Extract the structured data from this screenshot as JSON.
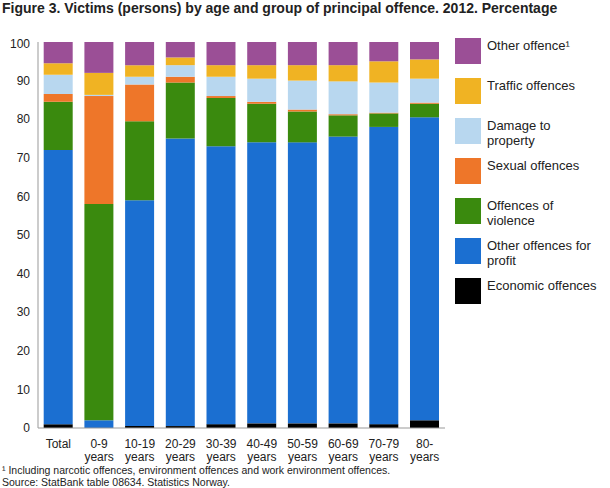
{
  "chart_data": {
    "type": "bar",
    "title": "Figure 3. Victims (persons) by age and group of principal offence. 2012. Percentage",
    "annotations": [
      "¹ Including narcotic offences, environment offences and work environment offences.",
      "Source: StatBank table 08634. Statistics Norway."
    ],
    "categories": [
      "Total",
      "0-9 years",
      "10-19 years",
      "20-29 years",
      "30-39 years",
      "40-49 years",
      "50-59 years",
      "60-69 years",
      "70-79 years",
      "80- years"
    ],
    "stacked": true,
    "grid": false,
    "legend": "right",
    "ylim": [
      0,
      100
    ],
    "yticks": [
      0,
      10,
      20,
      30,
      40,
      50,
      60,
      70,
      80,
      90,
      100
    ],
    "series": [
      {
        "name": "Economic offences",
        "color": "#000000",
        "values": [
          1,
          0,
          0.5,
          0.5,
          1,
          1.2,
          1.2,
          1.2,
          1,
          2
        ]
      },
      {
        "name": "Other offences for profit",
        "color": "#1b6fd1",
        "values": [
          71,
          2,
          58.5,
          74.5,
          72,
          72.8,
          72.8,
          74.3,
          77,
          78.5
        ]
      },
      {
        "name": "Offences of violence",
        "color": "#3a8a0e",
        "values": [
          12.5,
          56,
          20.5,
          14.5,
          12.5,
          10,
          8,
          5.5,
          3.5,
          3.5
        ]
      },
      {
        "name": "Sexual offences",
        "color": "#ee7629",
        "values": [
          2,
          28,
          9.5,
          1.5,
          0.5,
          0.5,
          0.5,
          0.3,
          0.2,
          0.3
        ]
      },
      {
        "name": "Damage to property",
        "color": "#b8d7ef",
        "values": [
          5,
          0.3,
          2,
          3,
          5,
          6,
          7.5,
          8.5,
          7.8,
          6.2
        ]
      },
      {
        "name": "Traffic offences",
        "color": "#f0b323",
        "values": [
          3,
          5.7,
          3,
          2,
          3,
          3.5,
          4,
          4.2,
          5.5,
          5
        ]
      },
      {
        "name": "Other offence¹",
        "color": "#9b4f96",
        "values": [
          5.5,
          8,
          6,
          4,
          6,
          6,
          6,
          6,
          5,
          4.5
        ]
      }
    ]
  }
}
